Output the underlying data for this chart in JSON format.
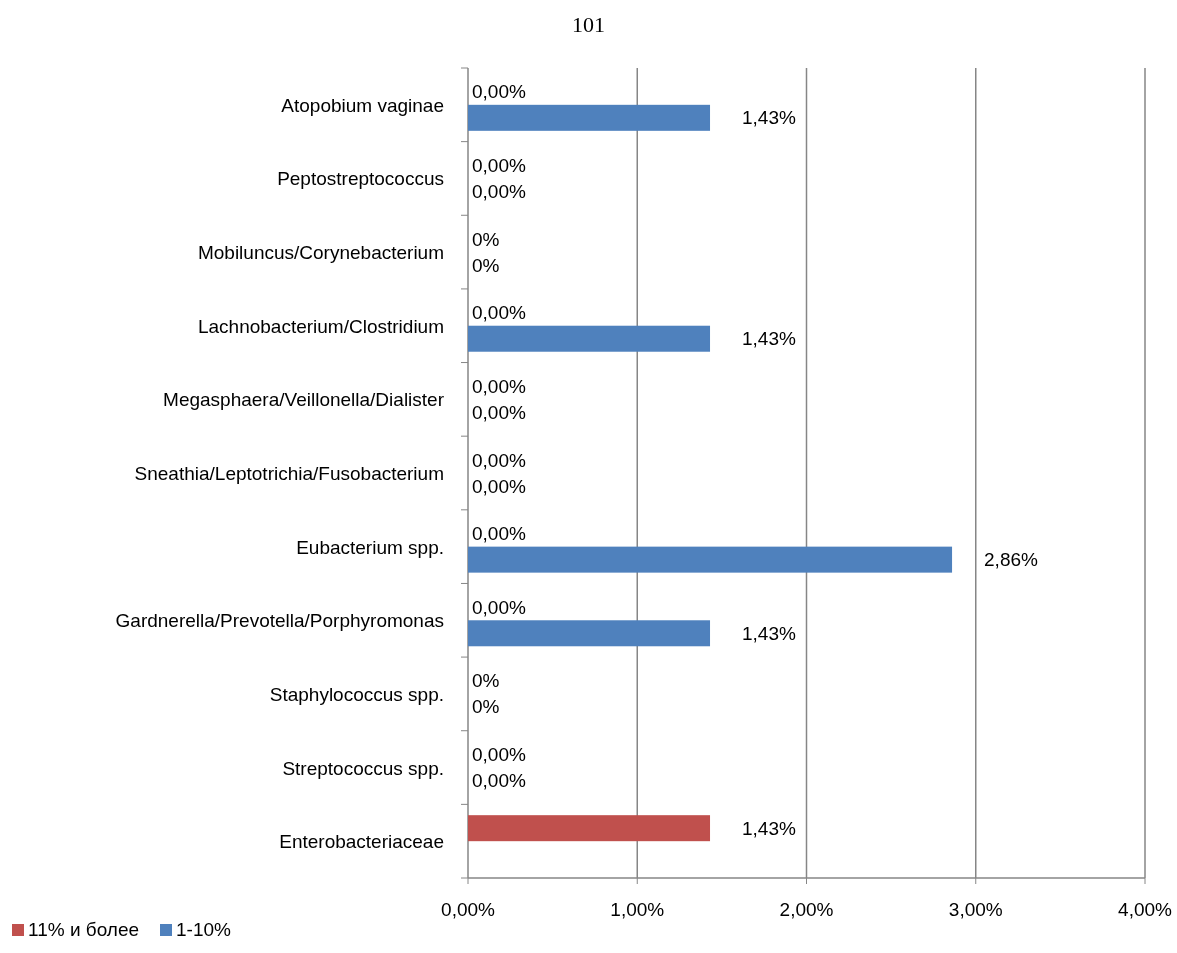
{
  "chart_data": {
    "type": "bar",
    "orientation": "horizontal",
    "title": "101",
    "categories": [
      "Atopobium vaginae",
      "Peptostreptococcus",
      "Mobiluncus/Corynebacterium",
      "Lachnobacterium/Clostridium",
      "Megasphaera/Veillonella/Dialister",
      "Sneathia/Leptotrichia/Fusobacterium",
      "Eubacterium spp.",
      "Gardnerella/Prevotella/Porphyromonas",
      "Staphylococcus spp.",
      "Streptococcus spp.",
      "Enterobacteriaceae"
    ],
    "series": [
      {
        "name": "1-10%",
        "color": "#4f81bd",
        "values": [
          1.43,
          0,
          0,
          1.43,
          0,
          0,
          2.86,
          1.43,
          0,
          0,
          0
        ],
        "value_labels": [
          "1,43%",
          "0,00%",
          "0%",
          "1,43%",
          "0,00%",
          "0,00%",
          "2,86%",
          "1,43%",
          "0%",
          "0,00%",
          null
        ]
      },
      {
        "name": "11% и более",
        "color": "#c0504d",
        "values": [
          0,
          0,
          0,
          0,
          0,
          0,
          0,
          0,
          0,
          0,
          1.43
        ],
        "value_labels": [
          "0,00%",
          "0,00%",
          "0%",
          "0,00%",
          "0,00%",
          "0,00%",
          "0,00%",
          "0,00%",
          "0%",
          "0,00%",
          "1,43%"
        ]
      }
    ],
    "xlim": [
      0,
      4
    ],
    "xticks": [
      {
        "value": 0,
        "label": "0,00%"
      },
      {
        "value": 1,
        "label": "1,00%"
      },
      {
        "value": 2,
        "label": "2,00%"
      },
      {
        "value": 3,
        "label": "3,00%"
      },
      {
        "value": 4,
        "label": "4,00%"
      }
    ],
    "grid": "x",
    "legend": "bottom left"
  }
}
